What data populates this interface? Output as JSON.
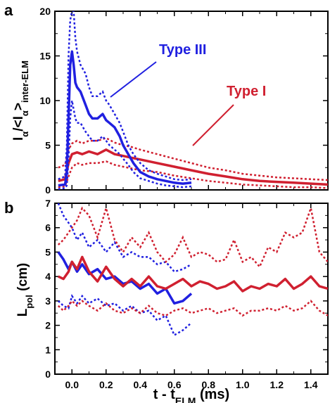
{
  "chart_data": [
    {
      "panel": "a",
      "type": "line",
      "ylabel": {
        "main": "I",
        "sub1": "α",
        "mid": "/<I",
        "sub2": "α",
        "end": ">",
        "sub3": "inter-ELM"
      },
      "xlim": [
        -0.1,
        1.5
      ],
      "ylim": [
        0,
        20
      ],
      "yticks": [
        0,
        5,
        10,
        15,
        20
      ],
      "grid": false,
      "annotations": [
        {
          "text": "Type III",
          "color": "#2020e0"
        },
        {
          "text": "Type I",
          "color": "#d02030"
        }
      ],
      "series": [
        {
          "name": "Type III",
          "color": "#2020e0",
          "x": [
            -0.08,
            -0.04,
            -0.03,
            -0.02,
            -0.01,
            0.0,
            0.01,
            0.02,
            0.03,
            0.05,
            0.08,
            0.1,
            0.12,
            0.15,
            0.18,
            0.2,
            0.22,
            0.25,
            0.28,
            0.3,
            0.33,
            0.36,
            0.4,
            0.45,
            0.5,
            0.55,
            0.6,
            0.65,
            0.7
          ],
          "mean": [
            0.5,
            0.6,
            2.0,
            8.0,
            14.0,
            15.5,
            14.0,
            12.0,
            11.5,
            11.0,
            9.5,
            8.5,
            8.0,
            8.0,
            8.5,
            7.8,
            7.5,
            7.0,
            6.0,
            5.0,
            4.0,
            3.0,
            2.0,
            1.5,
            1.2,
            1.0,
            0.8,
            0.7,
            0.8
          ],
          "upper": [
            1.2,
            1.5,
            5.0,
            15.0,
            19.0,
            20.0,
            20.0,
            17.0,
            15.5,
            14.0,
            13.0,
            11.5,
            10.5,
            10.5,
            11.0,
            10.0,
            9.5,
            8.5,
            7.5,
            6.5,
            5.0,
            4.0,
            3.0,
            2.2,
            1.8,
            1.5,
            1.2,
            1.1,
            1.2
          ],
          "lower": [
            0.1,
            0.2,
            0.5,
            3.5,
            8.0,
            10.0,
            9.0,
            8.0,
            7.5,
            7.5,
            6.5,
            6.0,
            5.5,
            5.5,
            6.0,
            5.5,
            5.0,
            4.5,
            4.0,
            3.5,
            2.8,
            2.0,
            1.3,
            1.0,
            0.7,
            0.5,
            0.4,
            0.3,
            0.4
          ]
        },
        {
          "name": "Type I",
          "color": "#d02030",
          "x": [
            -0.08,
            -0.04,
            -0.02,
            0.0,
            0.03,
            0.06,
            0.1,
            0.15,
            0.2,
            0.25,
            0.3,
            0.35,
            0.4,
            0.5,
            0.6,
            0.7,
            0.8,
            0.9,
            1.0,
            1.1,
            1.2,
            1.3,
            1.4,
            1.5
          ],
          "mean": [
            1.0,
            1.2,
            3.0,
            4.0,
            4.2,
            4.0,
            4.3,
            4.0,
            4.5,
            4.0,
            3.8,
            3.6,
            3.4,
            3.0,
            2.6,
            2.2,
            1.8,
            1.5,
            1.2,
            1.0,
            0.9,
            0.8,
            0.7,
            0.6
          ],
          "upper": [
            2.5,
            2.8,
            4.5,
            5.2,
            5.5,
            5.2,
            5.5,
            5.5,
            5.8,
            5.3,
            5.0,
            4.8,
            4.5,
            4.0,
            3.5,
            3.0,
            2.5,
            2.2,
            1.8,
            1.6,
            1.4,
            1.3,
            1.2,
            1.1
          ],
          "lower": [
            0.3,
            0.4,
            1.5,
            2.5,
            3.0,
            2.8,
            3.0,
            3.0,
            3.2,
            2.8,
            2.6,
            2.4,
            2.2,
            2.0,
            1.6,
            1.3,
            1.0,
            0.8,
            0.6,
            0.5,
            0.4,
            0.3,
            0.3,
            0.2
          ]
        }
      ]
    },
    {
      "panel": "b",
      "type": "line",
      "ylabel": {
        "main": "L",
        "sub1": "pol",
        "end": " (cm)"
      },
      "xlabel": {
        "main": "t - t",
        "sub1": "ELM",
        "end": " (ms)"
      },
      "xlim": [
        -0.1,
        1.5
      ],
      "ylim": [
        0,
        7
      ],
      "yticks": [
        0,
        1,
        2,
        3,
        4,
        5,
        6,
        7
      ],
      "xticks": [
        0.0,
        0.2,
        0.4,
        0.6,
        0.8,
        1.0,
        1.2,
        1.4
      ],
      "xticklabels": [
        "0.0",
        "0.2",
        "0.4",
        "0.6",
        "0.8",
        "1.0",
        "1.2",
        "1.4"
      ],
      "grid": false,
      "series": [
        {
          "name": "Type III",
          "color": "#2020e0",
          "x": [
            -0.08,
            -0.05,
            -0.02,
            0.0,
            0.03,
            0.06,
            0.1,
            0.15,
            0.2,
            0.25,
            0.3,
            0.35,
            0.4,
            0.45,
            0.5,
            0.55,
            0.6,
            0.65,
            0.7
          ],
          "mean": [
            5.0,
            4.7,
            4.3,
            4.6,
            4.2,
            4.5,
            4.1,
            4.3,
            3.9,
            4.0,
            3.7,
            3.8,
            3.5,
            3.7,
            3.3,
            3.5,
            2.9,
            3.0,
            3.3
          ],
          "upper": [
            7.0,
            6.5,
            6.2,
            6.0,
            5.5,
            5.8,
            5.2,
            5.5,
            5.0,
            5.4,
            4.8,
            5.0,
            4.8,
            4.8,
            4.5,
            4.6,
            4.2,
            4.3,
            4.5
          ],
          "lower": [
            3.0,
            2.8,
            2.7,
            3.2,
            2.9,
            3.2,
            2.9,
            3.1,
            2.8,
            2.9,
            2.6,
            2.8,
            2.5,
            2.6,
            2.2,
            2.4,
            1.6,
            1.8,
            2.1
          ]
        },
        {
          "name": "Type I",
          "color": "#d02030",
          "x": [
            -0.08,
            -0.05,
            -0.02,
            0.0,
            0.03,
            0.06,
            0.1,
            0.15,
            0.2,
            0.25,
            0.3,
            0.35,
            0.4,
            0.45,
            0.5,
            0.55,
            0.6,
            0.65,
            0.7,
            0.75,
            0.8,
            0.85,
            0.9,
            0.95,
            1.0,
            1.05,
            1.1,
            1.15,
            1.2,
            1.25,
            1.3,
            1.35,
            1.4,
            1.45,
            1.5
          ],
          "mean": [
            4.0,
            3.9,
            4.2,
            4.6,
            4.3,
            4.8,
            4.2,
            3.8,
            4.4,
            3.9,
            3.6,
            3.9,
            3.6,
            4.0,
            3.6,
            3.5,
            3.7,
            3.9,
            3.6,
            3.8,
            3.7,
            3.5,
            3.6,
            3.8,
            3.4,
            3.6,
            3.5,
            3.7,
            3.6,
            3.9,
            3.5,
            3.7,
            4.0,
            3.6,
            3.5
          ],
          "upper": [
            5.3,
            5.5,
            5.8,
            6.0,
            6.3,
            6.8,
            6.5,
            5.6,
            6.8,
            5.5,
            5.0,
            5.6,
            5.2,
            5.8,
            5.0,
            4.6,
            4.9,
            5.6,
            4.8,
            5.0,
            4.9,
            4.6,
            4.7,
            5.5,
            4.6,
            4.8,
            4.4,
            5.2,
            5.0,
            5.8,
            5.6,
            5.8,
            6.8,
            5.0,
            4.6
          ],
          "lower": [
            2.8,
            2.6,
            2.8,
            3.0,
            2.8,
            3.0,
            2.8,
            2.6,
            2.9,
            2.6,
            2.5,
            2.7,
            2.5,
            2.8,
            2.5,
            2.4,
            2.6,
            2.7,
            2.5,
            2.6,
            2.7,
            2.5,
            2.6,
            2.7,
            2.4,
            2.6,
            2.6,
            2.7,
            2.6,
            2.8,
            2.6,
            2.7,
            3.0,
            2.6,
            2.4
          ]
        }
      ]
    }
  ],
  "panels": [
    {
      "letter": "a"
    },
    {
      "letter": "b"
    }
  ]
}
